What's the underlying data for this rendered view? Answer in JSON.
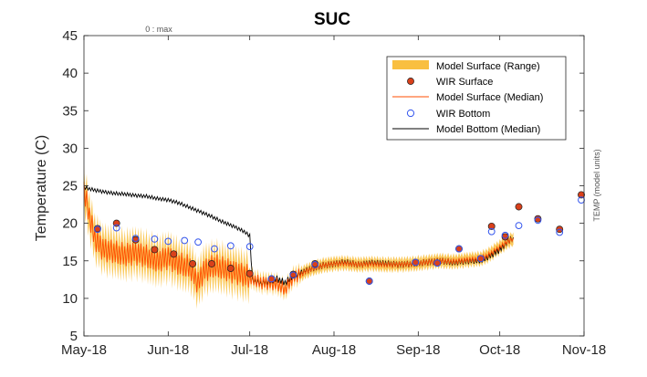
{
  "chart_data": {
    "type": "line",
    "title": "SUC",
    "ylabel": "Temperature (C)",
    "right_label": "TEMP (model units)",
    "top_annotation": "0 : max",
    "ylim": [
      5,
      45
    ],
    "yticks": [
      5,
      10,
      15,
      20,
      25,
      30,
      35,
      40,
      45
    ],
    "xlim": [
      "2018-05-01",
      "2018-11-01"
    ],
    "xticks": [
      {
        "date": "2018-05-01",
        "label": "May-18"
      },
      {
        "date": "2018-06-01",
        "label": "Jun-18"
      },
      {
        "date": "2018-07-01",
        "label": "Jul-18"
      },
      {
        "date": "2018-08-01",
        "label": "Aug-18"
      },
      {
        "date": "2018-09-01",
        "label": "Sep-18"
      },
      {
        "date": "2018-10-01",
        "label": "Oct-18"
      },
      {
        "date": "2018-11-01",
        "label": "Nov-18"
      }
    ],
    "legend": {
      "position": "top-right",
      "entries": [
        {
          "label": "Model Surface (Range)",
          "kind": "patch",
          "color": "#F9BF40"
        },
        {
          "label": "WIR Surface",
          "kind": "filled-circle",
          "color": "#D9401A"
        },
        {
          "label": "Model Surface (Median)",
          "kind": "line",
          "color": "#FF4D00"
        },
        {
          "label": "WIR Bottom",
          "kind": "open-circle",
          "color": "#3355EE"
        },
        {
          "label": "Model Bottom (Median)",
          "kind": "line",
          "color": "#000000"
        }
      ]
    },
    "series": [
      {
        "name": "Model Bottom (Median)",
        "color": "#000000",
        "points": [
          [
            "2018-05-01",
            24.8
          ],
          [
            "2018-05-04",
            24.5
          ],
          [
            "2018-05-08",
            24.2
          ],
          [
            "2018-05-12",
            24.0
          ],
          [
            "2018-05-16",
            23.9
          ],
          [
            "2018-05-20",
            23.7
          ],
          [
            "2018-05-24",
            23.6
          ],
          [
            "2018-05-28",
            23.3
          ],
          [
            "2018-06-01",
            23.1
          ],
          [
            "2018-06-05",
            22.7
          ],
          [
            "2018-06-09",
            22.1
          ],
          [
            "2018-06-13",
            21.5
          ],
          [
            "2018-06-17",
            20.9
          ],
          [
            "2018-06-21",
            20.2
          ],
          [
            "2018-06-25",
            19.6
          ],
          [
            "2018-06-29",
            18.9
          ],
          [
            "2018-07-01",
            18.3
          ],
          [
            "2018-07-02",
            12.4
          ],
          [
            "2018-07-05",
            12.0
          ],
          [
            "2018-07-08",
            12.3
          ],
          [
            "2018-07-11",
            12.6
          ],
          [
            "2018-07-14",
            12.1
          ],
          [
            "2018-07-17",
            13.0
          ],
          [
            "2018-07-20",
            13.4
          ],
          [
            "2018-07-24",
            14.0
          ],
          [
            "2018-07-28",
            14.4
          ],
          [
            "2018-08-01",
            14.6
          ],
          [
            "2018-08-05",
            14.8
          ],
          [
            "2018-08-10",
            14.5
          ],
          [
            "2018-08-15",
            14.7
          ],
          [
            "2018-08-20",
            14.6
          ],
          [
            "2018-08-25",
            14.5
          ],
          [
            "2018-08-30",
            14.6
          ],
          [
            "2018-09-04",
            14.8
          ],
          [
            "2018-09-09",
            15.0
          ],
          [
            "2018-09-14",
            14.8
          ],
          [
            "2018-09-19",
            15.0
          ],
          [
            "2018-09-24",
            15.1
          ],
          [
            "2018-09-27",
            15.6
          ],
          [
            "2018-10-01",
            16.5
          ],
          [
            "2018-10-04",
            17.6
          ],
          [
            "2018-10-06",
            18.1
          ]
        ]
      },
      {
        "name": "Model Surface (Median)",
        "color": "#FF4D00",
        "points": [
          [
            "2018-05-01",
            24.5
          ],
          [
            "2018-05-03",
            21.0
          ],
          [
            "2018-05-05",
            18.0
          ],
          [
            "2018-05-08",
            16.5
          ],
          [
            "2018-05-12",
            16.2
          ],
          [
            "2018-05-16",
            15.8
          ],
          [
            "2018-05-20",
            16.0
          ],
          [
            "2018-05-24",
            15.6
          ],
          [
            "2018-05-28",
            15.0
          ],
          [
            "2018-06-01",
            15.4
          ],
          [
            "2018-06-05",
            14.6
          ],
          [
            "2018-06-09",
            14.2
          ],
          [
            "2018-06-12",
            12.0
          ],
          [
            "2018-06-14",
            13.6
          ],
          [
            "2018-06-18",
            14.4
          ],
          [
            "2018-06-22",
            13.9
          ],
          [
            "2018-06-26",
            13.4
          ],
          [
            "2018-06-30",
            13.0
          ],
          [
            "2018-07-02",
            12.6
          ],
          [
            "2018-07-05",
            12.1
          ],
          [
            "2018-07-08",
            12.0
          ],
          [
            "2018-07-11",
            11.9
          ],
          [
            "2018-07-14",
            11.2
          ],
          [
            "2018-07-17",
            12.8
          ],
          [
            "2018-07-20",
            13.3
          ],
          [
            "2018-07-24",
            14.0
          ],
          [
            "2018-07-28",
            14.4
          ],
          [
            "2018-08-01",
            14.6
          ],
          [
            "2018-08-05",
            14.7
          ],
          [
            "2018-08-10",
            14.5
          ],
          [
            "2018-08-15",
            14.6
          ],
          [
            "2018-08-20",
            14.5
          ],
          [
            "2018-08-25",
            14.5
          ],
          [
            "2018-08-30",
            14.6
          ],
          [
            "2018-09-04",
            14.8
          ],
          [
            "2018-09-09",
            15.0
          ],
          [
            "2018-09-14",
            14.9
          ],
          [
            "2018-09-19",
            15.1
          ],
          [
            "2018-09-24",
            15.3
          ],
          [
            "2018-09-27",
            15.8
          ],
          [
            "2018-10-01",
            16.8
          ],
          [
            "2018-10-04",
            17.6
          ],
          [
            "2018-10-06",
            18.0
          ]
        ]
      },
      {
        "name": "WIR Surface",
        "color": "#D9401A",
        "points": [
          [
            "2018-05-06",
            19.3
          ],
          [
            "2018-05-13",
            20.0
          ],
          [
            "2018-05-20",
            17.8
          ],
          [
            "2018-05-27",
            16.5
          ],
          [
            "2018-06-03",
            15.9
          ],
          [
            "2018-06-10",
            14.6
          ],
          [
            "2018-06-17",
            14.6
          ],
          [
            "2018-06-24",
            14.0
          ],
          [
            "2018-07-01",
            13.3
          ],
          [
            "2018-07-09",
            12.6
          ],
          [
            "2018-07-17",
            13.2
          ],
          [
            "2018-07-25",
            14.6
          ],
          [
            "2018-08-14",
            12.3
          ],
          [
            "2018-08-31",
            14.8
          ],
          [
            "2018-09-08",
            14.7
          ],
          [
            "2018-09-16",
            16.6
          ],
          [
            "2018-09-24",
            15.3
          ],
          [
            "2018-09-28",
            19.6
          ],
          [
            "2018-10-03",
            18.2
          ],
          [
            "2018-10-08",
            22.2
          ],
          [
            "2018-10-15",
            20.6
          ],
          [
            "2018-10-23",
            19.2
          ],
          [
            "2018-10-31",
            23.8
          ]
        ]
      },
      {
        "name": "WIR Bottom",
        "color": "#3355EE",
        "points": [
          [
            "2018-05-06",
            19.2
          ],
          [
            "2018-05-13",
            19.4
          ],
          [
            "2018-05-20",
            18.0
          ],
          [
            "2018-05-27",
            17.9
          ],
          [
            "2018-06-01",
            17.6
          ],
          [
            "2018-06-07",
            17.7
          ],
          [
            "2018-06-12",
            17.5
          ],
          [
            "2018-06-18",
            16.6
          ],
          [
            "2018-06-24",
            17.0
          ],
          [
            "2018-07-01",
            16.9
          ],
          [
            "2018-07-09",
            12.6
          ],
          [
            "2018-07-17",
            13.1
          ],
          [
            "2018-07-25",
            14.5
          ],
          [
            "2018-08-14",
            12.3
          ],
          [
            "2018-08-31",
            14.8
          ],
          [
            "2018-09-08",
            14.7
          ],
          [
            "2018-09-16",
            16.6
          ],
          [
            "2018-09-24",
            15.3
          ],
          [
            "2018-09-28",
            18.9
          ],
          [
            "2018-10-03",
            18.4
          ],
          [
            "2018-10-08",
            19.7
          ],
          [
            "2018-10-15",
            20.4
          ],
          [
            "2018-10-23",
            18.8
          ],
          [
            "2018-10-31",
            23.1
          ]
        ]
      }
    ]
  }
}
